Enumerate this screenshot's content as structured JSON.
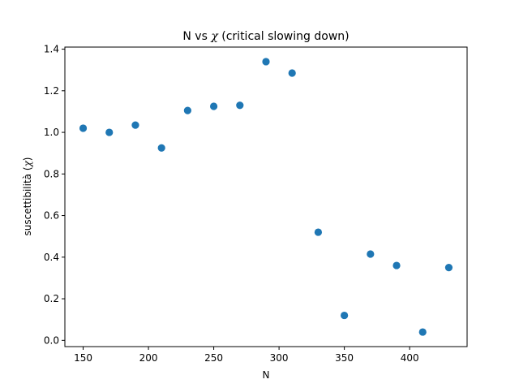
{
  "chart_data": {
    "type": "scatter",
    "title_prefix": "N vs ",
    "title_symbol": "χ",
    "title_suffix": " (critical slowing down)",
    "xlabel": "N",
    "ylabel_prefix": "suscettibilità (",
    "ylabel_symbol": "χ",
    "ylabel_suffix": ")",
    "xlim": [
      136,
      444
    ],
    "ylim": [
      -0.03,
      1.41
    ],
    "xticks": [
      150,
      200,
      250,
      300,
      350,
      400
    ],
    "xtick_labels": [
      "150",
      "200",
      "250",
      "300",
      "350",
      "400"
    ],
    "yticks": [
      0.0,
      0.2,
      0.4,
      0.6,
      0.8,
      1.0,
      1.2,
      1.4
    ],
    "ytick_labels": [
      "0.0",
      "0.2",
      "0.4",
      "0.6",
      "0.8",
      "1.0",
      "1.2",
      "1.4"
    ],
    "grid": false,
    "marker_color": "#1f77b4",
    "points": [
      {
        "x": 150,
        "y": 1.02
      },
      {
        "x": 170,
        "y": 1.0
      },
      {
        "x": 190,
        "y": 1.035
      },
      {
        "x": 210,
        "y": 0.925
      },
      {
        "x": 230,
        "y": 1.105
      },
      {
        "x": 250,
        "y": 1.125
      },
      {
        "x": 270,
        "y": 1.13
      },
      {
        "x": 290,
        "y": 1.34
      },
      {
        "x": 310,
        "y": 1.285
      },
      {
        "x": 330,
        "y": 0.52
      },
      {
        "x": 350,
        "y": 0.12
      },
      {
        "x": 370,
        "y": 0.415
      },
      {
        "x": 390,
        "y": 0.36
      },
      {
        "x": 410,
        "y": 0.04
      },
      {
        "x": 430,
        "y": 0.35
      }
    ]
  }
}
